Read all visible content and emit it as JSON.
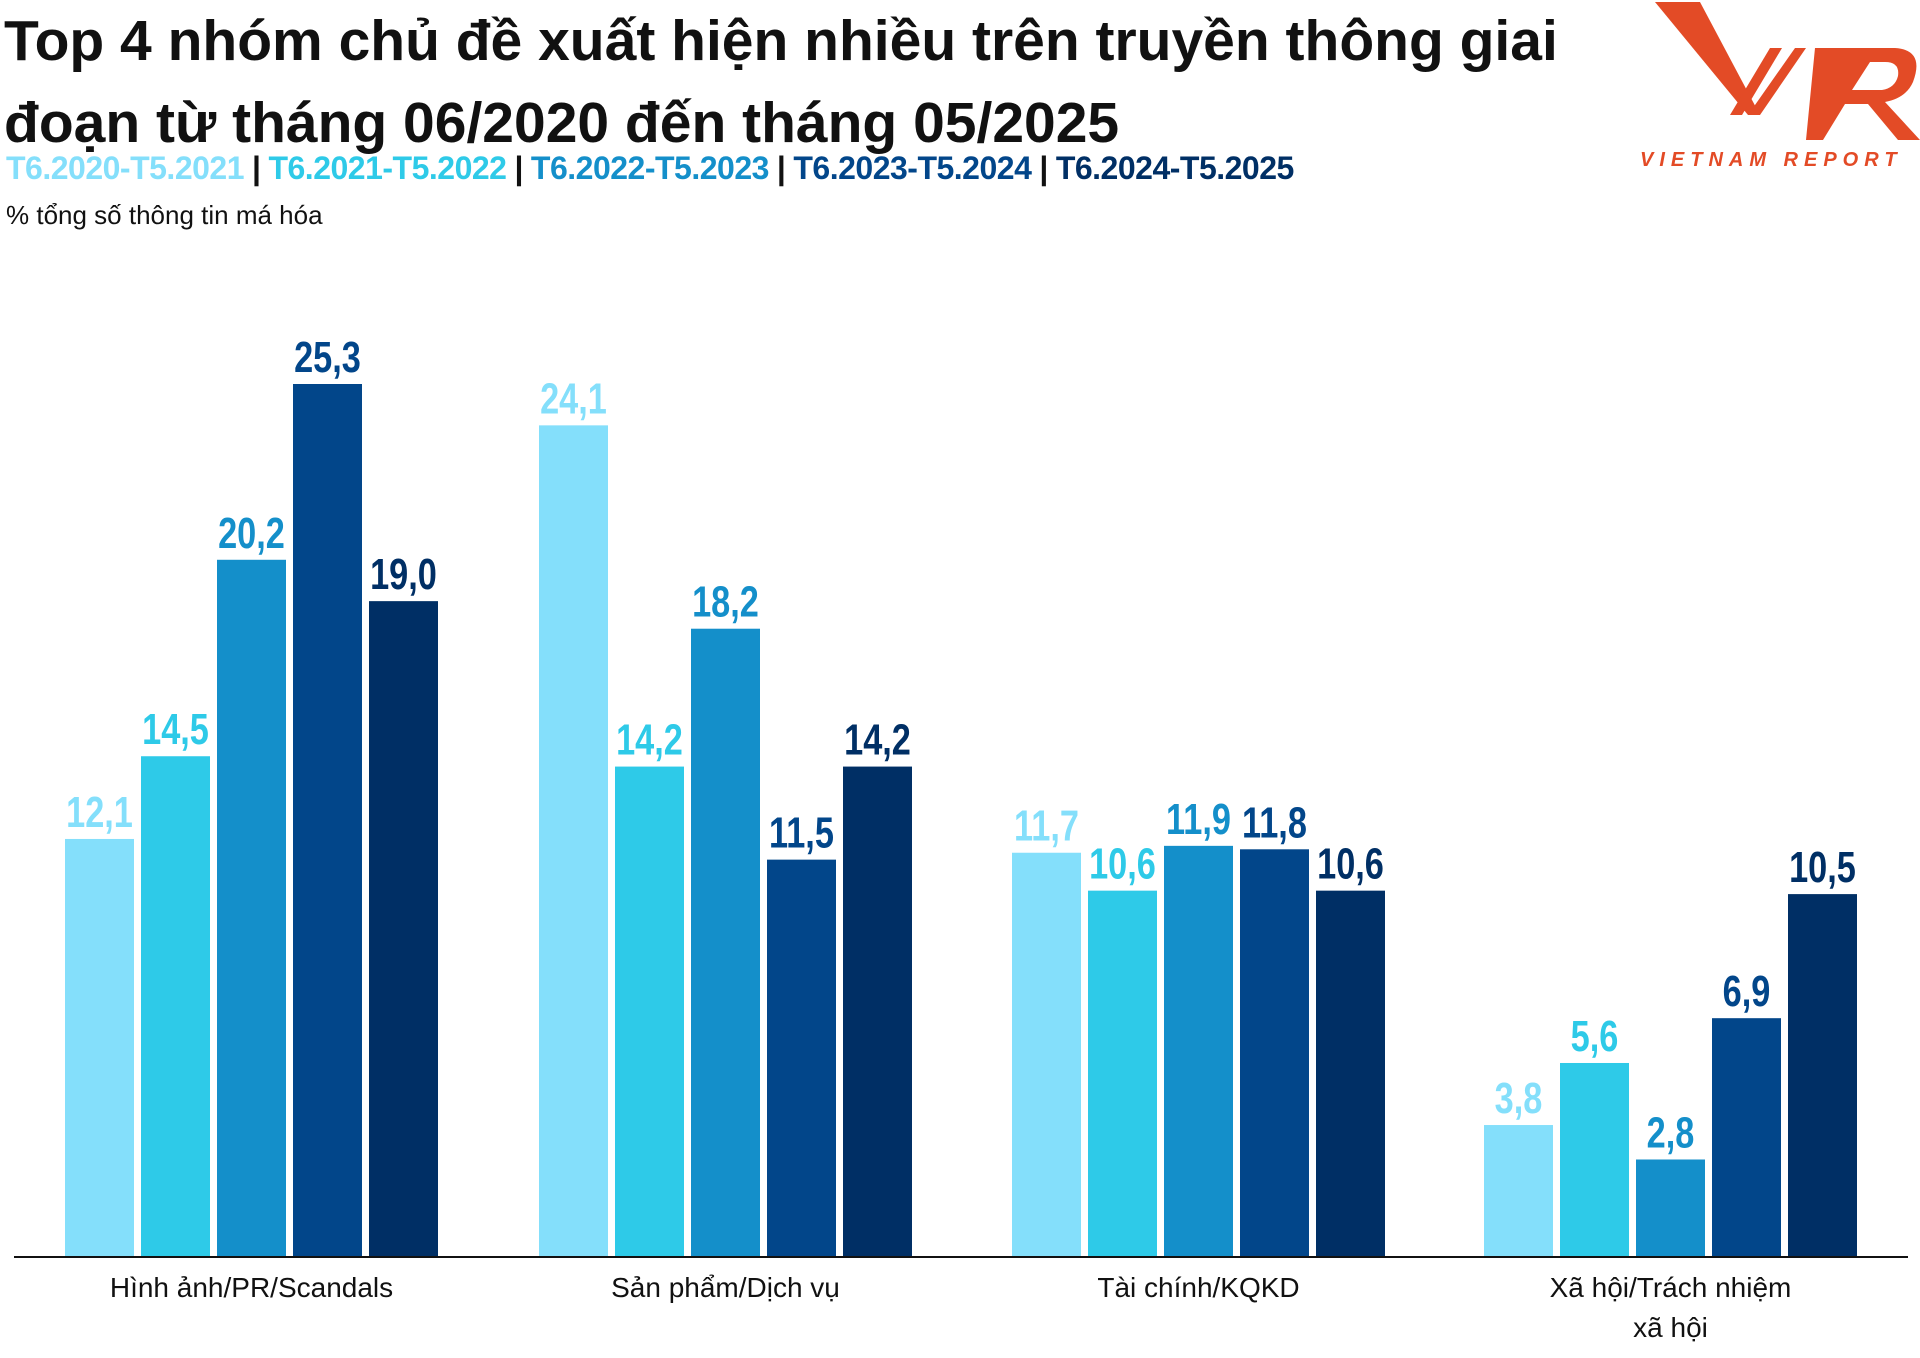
{
  "chart_data": {
    "type": "bar",
    "title": "Top 4 nhóm chủ đề xuất hiện nhiều trên truyền thông giai đoạn từ tháng 06/2020 đến tháng 05/2025",
    "ylabel": "% tổng số thông tin má hóa",
    "categories": [
      "Hình ảnh/PR/Scandals",
      "Sản phẩm/Dịch vụ",
      "Tài chính/KQKD",
      "Xã hội/Trách nhiệm xã hội"
    ],
    "series": [
      {
        "name": "T6.2020-T5.2021",
        "color": "#84dffb",
        "values": [
          12.1,
          24.1,
          11.7,
          3.8
        ]
      },
      {
        "name": "T6.2021-T5.2022",
        "color": "#2ecae8",
        "values": [
          14.5,
          14.2,
          10.6,
          5.6
        ]
      },
      {
        "name": "T6.2022-T5.2023",
        "color": "#148fca",
        "values": [
          20.2,
          18.2,
          11.9,
          2.8
        ]
      },
      {
        "name": "T6.2023-T5.2024",
        "color": "#02468a",
        "values": [
          25.3,
          11.5,
          11.8,
          6.9
        ]
      },
      {
        "name": "T6.2024-T5.2025",
        "color": "#002f65",
        "values": [
          19.0,
          14.2,
          10.6,
          10.5
        ]
      }
    ],
    "ylim": [
      0,
      25.3
    ],
    "grid": false,
    "legend": "top-left",
    "decimal_separator": ","
  },
  "logo": {
    "text": "VNR",
    "tagline": "VIETNAM REPORT",
    "color": "#e34b26"
  }
}
